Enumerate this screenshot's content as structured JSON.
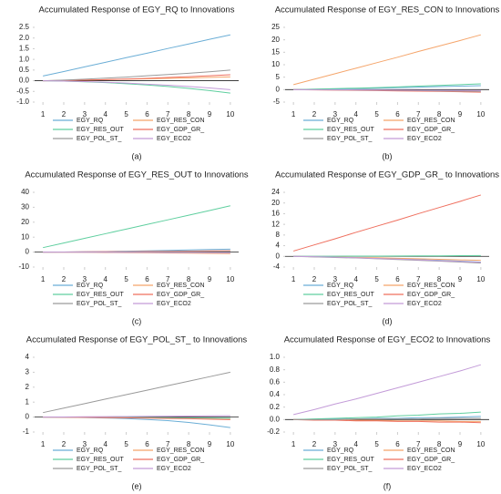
{
  "chart_data": [
    {
      "type": "line",
      "title": "Accumulated Response of EGY_RQ to Innovations",
      "panel_label": "(a)",
      "x": [
        1,
        2,
        3,
        4,
        5,
        6,
        7,
        8,
        9,
        10
      ],
      "xlim": [
        0.6,
        10.4
      ],
      "xticks": [
        1,
        2,
        3,
        4,
        5,
        6,
        7,
        8,
        9,
        10
      ],
      "ylim": [
        -1,
        2.5
      ],
      "yticks": [
        {
          "value": -1,
          "label": "-1.0"
        },
        -0.5,
        {
          "value": 0,
          "label": "0.0"
        },
        0.5,
        {
          "value": 1,
          "label": "1.0"
        },
        1.5,
        {
          "value": 2,
          "label": "2.0"
        },
        2.5
      ],
      "series": [
        {
          "name": "EGY_RQ",
          "color": "#6baed6",
          "values": [
            0.22,
            0.43,
            0.65,
            0.86,
            1.08,
            1.29,
            1.51,
            1.72,
            1.94,
            2.15
          ]
        },
        {
          "name": "EGY_RES_CON",
          "color": "#f5a56b",
          "values": [
            0,
            0.02,
            0.03,
            0.05,
            0.07,
            0.09,
            0.11,
            0.13,
            0.16,
            0.18
          ]
        },
        {
          "name": "EGY_RES_OUT",
          "color": "#5fcf9f",
          "values": [
            0,
            -0.02,
            -0.05,
            -0.09,
            -0.14,
            -0.2,
            -0.27,
            -0.36,
            -0.46,
            -0.58
          ]
        },
        {
          "name": "EGY_GDP_GR_",
          "color": "#ef6f5e",
          "values": [
            0,
            0.01,
            0.03,
            0.05,
            0.08,
            0.11,
            0.15,
            0.19,
            0.23,
            0.28
          ]
        },
        {
          "name": "EGY_POL_ST_",
          "color": "#9a9a9a",
          "values": [
            0,
            0.03,
            0.07,
            0.12,
            0.17,
            0.23,
            0.29,
            0.35,
            0.42,
            0.5
          ]
        },
        {
          "name": "EGY_ECO2",
          "color": "#c39bd8",
          "values": [
            0,
            -0.02,
            -0.04,
            -0.07,
            -0.11,
            -0.16,
            -0.21,
            -0.27,
            -0.34,
            -0.42
          ]
        }
      ]
    },
    {
      "type": "line",
      "title": "Accumulated Response of EGY_RES_CON to Innovations",
      "panel_label": "(b)",
      "x": [
        1,
        2,
        3,
        4,
        5,
        6,
        7,
        8,
        9,
        10
      ],
      "xlim": [
        0.6,
        10.4
      ],
      "xticks": [
        1,
        2,
        3,
        4,
        5,
        6,
        7,
        8,
        9,
        10
      ],
      "ylim": [
        -5,
        25
      ],
      "yticks": [
        -5,
        0,
        5,
        10,
        15,
        20,
        25
      ],
      "series": [
        {
          "name": "EGY_RQ",
          "color": "#6baed6",
          "values": [
            0,
            0.1,
            0.25,
            0.4,
            0.6,
            0.8,
            1.0,
            1.2,
            1.4,
            1.6
          ]
        },
        {
          "name": "EGY_RES_CON",
          "color": "#f5a56b",
          "values": [
            2,
            4.2,
            6.4,
            8.6,
            10.8,
            13,
            15.3,
            17.5,
            19.7,
            22
          ]
        },
        {
          "name": "EGY_RES_OUT",
          "color": "#5fcf9f",
          "values": [
            0,
            0.2,
            0.4,
            0.6,
            0.8,
            1.1,
            1.4,
            1.7,
            2,
            2.3
          ]
        },
        {
          "name": "EGY_GDP_GR_",
          "color": "#ef6f5e",
          "values": [
            0,
            -0.1,
            -0.2,
            -0.3,
            -0.4,
            -0.5,
            -0.6,
            -0.7,
            -0.85,
            -1
          ]
        },
        {
          "name": "EGY_POL_ST_",
          "color": "#9a9a9a",
          "values": [
            0,
            -0.05,
            -0.1,
            -0.15,
            -0.2,
            -0.3,
            -0.4,
            -0.5,
            -0.6,
            -0.7
          ]
        },
        {
          "name": "EGY_ECO2",
          "color": "#c39bd8",
          "values": [
            0,
            0,
            -0.05,
            -0.1,
            -0.15,
            -0.2,
            -0.25,
            -0.3,
            -0.35,
            -0.4
          ]
        }
      ]
    },
    {
      "type": "line",
      "title": "Accumulated Response of EGY_RES_OUT to Innovations",
      "panel_label": "(c)",
      "x": [
        1,
        2,
        3,
        4,
        5,
        6,
        7,
        8,
        9,
        10
      ],
      "xlim": [
        0.6,
        10.4
      ],
      "xticks": [
        1,
        2,
        3,
        4,
        5,
        6,
        7,
        8,
        9,
        10
      ],
      "ylim": [
        -10,
        40
      ],
      "yticks": [
        -10,
        0,
        10,
        20,
        30,
        40
      ],
      "series": [
        {
          "name": "EGY_RQ",
          "color": "#6baed6",
          "values": [
            0,
            0.1,
            0.2,
            0.4,
            0.6,
            0.8,
            1.1,
            1.4,
            1.7,
            2
          ]
        },
        {
          "name": "EGY_RES_CON",
          "color": "#f5a56b",
          "values": [
            0,
            -0.1,
            -0.2,
            -0.3,
            -0.4,
            -0.5,
            -0.6,
            -0.7,
            -0.85,
            -1
          ]
        },
        {
          "name": "EGY_RES_OUT",
          "color": "#5fcf9f",
          "values": [
            3,
            6.1,
            9.2,
            12.3,
            15.4,
            18.5,
            21.6,
            24.7,
            27.8,
            31
          ]
        },
        {
          "name": "EGY_GDP_GR_",
          "color": "#ef6f5e",
          "values": [
            0,
            0.1,
            0.2,
            0.3,
            0.4,
            0.5,
            0.6,
            0.7,
            0.8,
            0.9
          ]
        },
        {
          "name": "EGY_POL_ST_",
          "color": "#9a9a9a",
          "values": [
            0,
            0,
            0.1,
            0.1,
            0.2,
            0.2,
            0.3,
            0.3,
            0.4,
            0.5
          ]
        },
        {
          "name": "EGY_ECO2",
          "color": "#c39bd8",
          "values": [
            0,
            0,
            -0.1,
            -0.1,
            -0.2,
            -0.2,
            -0.3,
            -0.3,
            -0.4,
            -0.5
          ]
        }
      ]
    },
    {
      "type": "line",
      "title": "Accumulated Response of EGY_GDP_GR_ to Innovations",
      "panel_label": "(d)",
      "x": [
        1,
        2,
        3,
        4,
        5,
        6,
        7,
        8,
        9,
        10
      ],
      "xlim": [
        0.6,
        10.4
      ],
      "xticks": [
        1,
        2,
        3,
        4,
        5,
        6,
        7,
        8,
        9,
        10
      ],
      "ylim": [
        -4,
        24
      ],
      "yticks": [
        -4,
        0,
        4,
        8,
        12,
        16,
        20,
        24
      ],
      "series": [
        {
          "name": "EGY_RQ",
          "color": "#6baed6",
          "values": [
            0,
            -0.1,
            -0.3,
            -0.5,
            -0.7,
            -0.9,
            -1.2,
            -1.5,
            -1.8,
            -2.1
          ]
        },
        {
          "name": "EGY_RES_CON",
          "color": "#f5a56b",
          "values": [
            0,
            -0.1,
            -0.2,
            -0.4,
            -0.5,
            -0.7,
            -0.9,
            -1.1,
            -1.3,
            -1.5
          ]
        },
        {
          "name": "EGY_RES_OUT",
          "color": "#5fcf9f",
          "values": [
            0,
            0,
            0.05,
            0.1,
            0.1,
            0.15,
            0.2,
            0.2,
            0.25,
            0.3
          ]
        },
        {
          "name": "EGY_GDP_GR_",
          "color": "#ef6f5e",
          "values": [
            2,
            4.3,
            6.6,
            9,
            11.3,
            13.6,
            16,
            18.3,
            20.6,
            23
          ]
        },
        {
          "name": "EGY_POL_ST_",
          "color": "#9a9a9a",
          "values": [
            0,
            -0.2,
            -0.4,
            -0.6,
            -0.9,
            -1.2,
            -1.5,
            -1.8,
            -2.1,
            -2.5
          ]
        },
        {
          "name": "EGY_ECO2",
          "color": "#c39bd8",
          "values": [
            0,
            -0.1,
            -0.3,
            -0.5,
            -0.8,
            -1,
            -1.3,
            -1.6,
            -1.9,
            -2.2
          ]
        }
      ]
    },
    {
      "type": "line",
      "title": "Accumulated Response of EGY_POL_ST_ to Innovations",
      "panel_label": "(e)",
      "x": [
        1,
        2,
        3,
        4,
        5,
        6,
        7,
        8,
        9,
        10
      ],
      "xlim": [
        0.6,
        10.4
      ],
      "xticks": [
        1,
        2,
        3,
        4,
        5,
        6,
        7,
        8,
        9,
        10
      ],
      "ylim": [
        -1,
        4
      ],
      "yticks": [
        -1,
        0,
        1,
        2,
        3,
        4
      ],
      "series": [
        {
          "name": "EGY_RQ",
          "color": "#6baed6",
          "values": [
            0,
            -0.01,
            -0.03,
            -0.06,
            -0.1,
            -0.16,
            -0.24,
            -0.36,
            -0.52,
            -0.7
          ]
        },
        {
          "name": "EGY_RES_CON",
          "color": "#f5a56b",
          "values": [
            0,
            -0.01,
            -0.02,
            -0.03,
            -0.04,
            -0.05,
            -0.06,
            -0.07,
            -0.08,
            -0.1
          ]
        },
        {
          "name": "EGY_RES_OUT",
          "color": "#5fcf9f",
          "values": [
            0,
            0,
            -0.01,
            -0.02,
            -0.03,
            -0.04,
            -0.05,
            -0.06,
            -0.07,
            -0.08
          ]
        },
        {
          "name": "EGY_GDP_GR_",
          "color": "#ef6f5e",
          "values": [
            0,
            -0.01,
            -0.02,
            -0.03,
            -0.05,
            -0.07,
            -0.09,
            -0.11,
            -0.14,
            -0.17
          ]
        },
        {
          "name": "EGY_POL_ST_",
          "color": "#9a9a9a",
          "values": [
            0.3,
            0.6,
            0.9,
            1.2,
            1.5,
            1.8,
            2.1,
            2.4,
            2.7,
            3
          ]
        },
        {
          "name": "EGY_ECO2",
          "color": "#c39bd8",
          "values": [
            0,
            0.01,
            0.02,
            0.03,
            0.04,
            0.05,
            0.06,
            0.07,
            0.08,
            0.09
          ]
        }
      ]
    },
    {
      "type": "line",
      "title": "Accumulated Response of EGY_ECO2 to Innovations",
      "panel_label": "(f)",
      "x": [
        1,
        2,
        3,
        4,
        5,
        6,
        7,
        8,
        9,
        10
      ],
      "xlim": [
        0.6,
        10.4
      ],
      "xticks": [
        1,
        2,
        3,
        4,
        5,
        6,
        7,
        8,
        9,
        10
      ],
      "ylim": [
        -0.2,
        1
      ],
      "yticks": [
        -0.2,
        {
          "value": 0,
          "label": "0.0"
        },
        0.2,
        0.4,
        0.6,
        0.8,
        {
          "value": 1,
          "label": "1.0"
        }
      ],
      "series": [
        {
          "name": "EGY_RQ",
          "color": "#6baed6",
          "values": [
            0,
            0,
            0.01,
            0.01,
            0.02,
            0.02,
            0.03,
            0.03,
            0.04,
            0.05
          ]
        },
        {
          "name": "EGY_RES_CON",
          "color": "#f5a56b",
          "values": [
            0,
            0,
            -0.01,
            -0.01,
            -0.01,
            -0.02,
            -0.02,
            -0.02,
            -0.03,
            -0.03
          ]
        },
        {
          "name": "EGY_RES_OUT",
          "color": "#5fcf9f",
          "values": [
            0,
            0.01,
            0.02,
            0.03,
            0.04,
            0.06,
            0.07,
            0.09,
            0.1,
            0.12
          ]
        },
        {
          "name": "EGY_GDP_GR_",
          "color": "#ef6f5e",
          "values": [
            0,
            -0.01,
            -0.01,
            -0.02,
            -0.02,
            -0.03,
            -0.03,
            -0.04,
            -0.04,
            -0.05
          ]
        },
        {
          "name": "EGY_POL_ST_",
          "color": "#9a9a9a",
          "values": [
            0,
            0,
            0,
            0.01,
            0.01,
            0.01,
            0.01,
            0.02,
            0.02,
            0.02
          ]
        },
        {
          "name": "EGY_ECO2",
          "color": "#c39bd8",
          "values": [
            0.08,
            0.16,
            0.25,
            0.33,
            0.42,
            0.51,
            0.6,
            0.69,
            0.78,
            0.88
          ]
        }
      ]
    }
  ]
}
